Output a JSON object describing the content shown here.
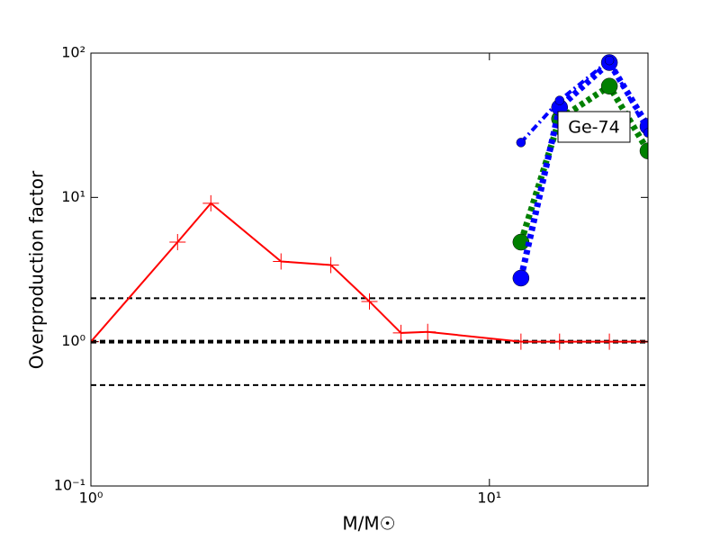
{
  "chart_data": {
    "type": "line",
    "xlabel": "M/M☉",
    "ylabel": "Overproduction factor",
    "xscale": "log",
    "yscale": "log",
    "xlim": [
      1,
      25
    ],
    "ylim": [
      0.1,
      100
    ],
    "xticks": [
      {
        "value": 1,
        "label": "10⁰"
      },
      {
        "value": 10,
        "label": "10¹"
      }
    ],
    "yticks": [
      {
        "value": 0.1,
        "label": "10⁻¹"
      },
      {
        "value": 1,
        "label": "10⁰"
      },
      {
        "value": 10,
        "label": "10¹"
      },
      {
        "value": 100,
        "label": "10²"
      }
    ],
    "hlines": [
      2,
      1,
      0.5
    ],
    "annotation": "Ge-74",
    "series": [
      {
        "color": "#ff0000",
        "marker": "plus",
        "linestyle": "solid",
        "x": [
          1,
          1.65,
          2,
          3,
          4,
          5,
          6,
          7,
          12,
          15,
          20,
          25
        ],
        "values": [
          1,
          4.9,
          9.1,
          3.6,
          3.4,
          1.9,
          1.15,
          1.17,
          1,
          1,
          1,
          1
        ]
      },
      {
        "color": "#008000",
        "marker": "circle-large",
        "linestyle": "dotted",
        "x": [
          12,
          15,
          20,
          25
        ],
        "values": [
          4.9,
          35,
          59,
          21
        ]
      },
      {
        "color": "#0000ff",
        "marker": "circle-large",
        "linestyle": "dotted",
        "x": [
          12,
          15,
          20,
          25
        ],
        "values": [
          2.76,
          42,
          86,
          31
        ]
      },
      {
        "color": "#0000ff",
        "marker": "circle-small",
        "linestyle": "dashdot",
        "x": [
          12,
          15,
          20,
          25
        ],
        "values": [
          24,
          47,
          89,
          28
        ]
      }
    ]
  }
}
